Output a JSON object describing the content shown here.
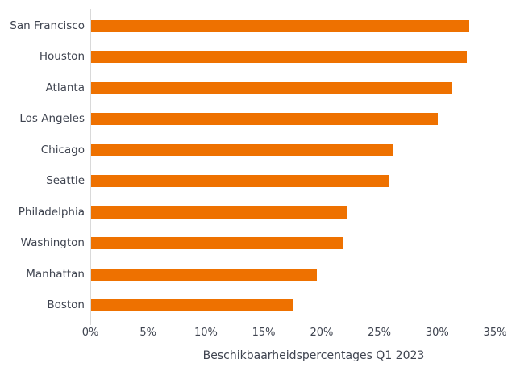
{
  "figure": {
    "background_color": "#FFFFFF"
  },
  "chart_data": {
    "type": "bar",
    "orientation": "horizontal",
    "categories": [
      "San Francisco",
      "Houston",
      "Atlanta",
      "Los Angeles",
      "Chicago",
      "Seattle",
      "Philadelphia",
      "Washington",
      "Manhattan",
      "Boston"
    ],
    "values": [
      32.7,
      32.5,
      31.2,
      30.0,
      26.1,
      25.7,
      22.2,
      21.8,
      19.5,
      17.5
    ],
    "value_unit": "%",
    "xlabel": "Beschikbaarheidspercentages Q1 2023",
    "ylabel": "",
    "xlim": [
      0,
      35
    ],
    "x_ticks": [
      {
        "value": 0,
        "label": "0%"
      },
      {
        "value": 5,
        "label": "5%"
      },
      {
        "value": 10,
        "label": "10%"
      },
      {
        "value": 15,
        "label": "15%"
      },
      {
        "value": 20,
        "label": "20%"
      },
      {
        "value": 25,
        "label": "25%"
      },
      {
        "value": 30,
        "label": "30%"
      },
      {
        "value": 35,
        "label": "35%"
      }
    ],
    "grid": false,
    "legend_position": "none",
    "colors": {
      "bar": "#EE7100",
      "text": "#3F4450",
      "spine": "#D9D9D9"
    }
  }
}
